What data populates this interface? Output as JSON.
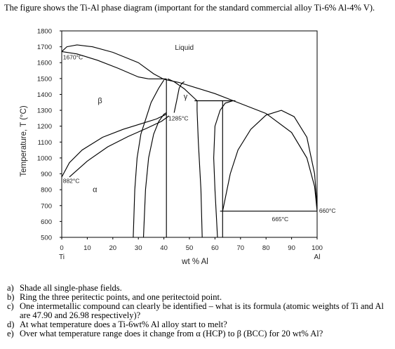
{
  "intro": "The figure shows the Ti-Al phase diagram (important for the standard commercial alloy Ti-6% Al-4% V).",
  "chart_data": {
    "type": "diagram",
    "ylabel": "Temperature, T (°C)",
    "xlabel": "wt % Al",
    "xlim": [
      0,
      100
    ],
    "ylim": [
      500,
      1800
    ],
    "x_ticks": [
      "0",
      "10",
      "20",
      "30",
      "40",
      "50",
      "60",
      "70",
      "80",
      "90",
      "100"
    ],
    "y_ticks": [
      "500",
      "600",
      "700",
      "800",
      "900",
      "1000",
      "1100",
      "1200",
      "1300",
      "1400",
      "1500",
      "1600",
      "1700",
      "1800"
    ],
    "x_end_labels": {
      "left": "Ti",
      "right": "Al"
    },
    "phase_labels": [
      {
        "text": "Liquid",
        "x": 48,
        "y": 1680
      },
      {
        "text": "β",
        "x": 15,
        "y": 1345
      },
      {
        "text": "γ",
        "x": 48.5,
        "y": 1370
      },
      {
        "text": "α",
        "x": 13,
        "y": 785
      }
    ],
    "temperature_annotations": [
      {
        "text": "1670°C",
        "x": 0.2,
        "y": 1635
      },
      {
        "text": "1285°C",
        "x": 41.5,
        "y": 1250
      },
      {
        "text": "882°C",
        "x": 0.2,
        "y": 855
      },
      {
        "text": "665°C",
        "x": 82,
        "y": 615
      },
      {
        "text": "660°C",
        "x": 100.5,
        "y": 668
      }
    ],
    "lines": [
      {
        "name": "liquidus",
        "points": [
          [
            0,
            1670
          ],
          [
            2,
            1700
          ],
          [
            6,
            1712
          ],
          [
            12,
            1700
          ],
          [
            20,
            1665
          ],
          [
            30,
            1600
          ],
          [
            36,
            1530
          ],
          [
            40,
            1495
          ],
          [
            46,
            1475
          ],
          [
            53,
            1440
          ],
          [
            60,
            1405
          ],
          [
            68,
            1355
          ]
        ]
      },
      {
        "name": "liquidus-right",
        "points": [
          [
            68,
            1355
          ],
          [
            80,
            1280
          ],
          [
            90,
            1160
          ],
          [
            96,
            1000
          ],
          [
            99,
            820
          ],
          [
            100,
            665
          ]
        ]
      },
      {
        "name": "beta-solvus-right",
        "points": [
          [
            0,
            1670
          ],
          [
            6,
            1655
          ],
          [
            14,
            1615
          ],
          [
            22,
            1565
          ],
          [
            30,
            1510
          ],
          [
            34,
            1498
          ]
        ]
      },
      {
        "name": "peritectic-1490",
        "points": [
          [
            34,
            1498
          ],
          [
            41,
            1498
          ]
        ]
      },
      {
        "name": "peritectic-1360",
        "points": [
          [
            52,
            1360
          ],
          [
            68,
            1360
          ]
        ]
      },
      {
        "name": "eutectic-665",
        "points": [
          [
            62,
            665
          ],
          [
            100,
            665
          ]
        ]
      },
      {
        "name": "beta-to-alpha",
        "points": [
          [
            0,
            880
          ],
          [
            3,
            970
          ],
          [
            8,
            1050
          ],
          [
            16,
            1130
          ],
          [
            24,
            1180
          ],
          [
            31,
            1215
          ],
          [
            37,
            1245
          ],
          [
            41,
            1275
          ]
        ]
      },
      {
        "name": "alpha-beta-lower",
        "points": [
          [
            3,
            880
          ],
          [
            10,
            980
          ],
          [
            18,
            1070
          ],
          [
            26,
            1135
          ],
          [
            33,
            1185
          ],
          [
            39,
            1230
          ],
          [
            42,
            1265
          ]
        ]
      },
      {
        "name": "alpha2-left",
        "points": [
          [
            28,
            500
          ],
          [
            28.6,
            800
          ],
          [
            29.5,
            1000
          ],
          [
            31,
            1150
          ],
          [
            33,
            1250
          ],
          [
            35,
            1350
          ],
          [
            38,
            1440
          ],
          [
            40,
            1490
          ]
        ]
      },
      {
        "name": "alpha2-right",
        "points": [
          [
            32,
            500
          ],
          [
            32.8,
            800
          ],
          [
            34,
            1000
          ],
          [
            36,
            1150
          ],
          [
            38,
            1230
          ],
          [
            40,
            1275
          ],
          [
            41,
            1285
          ]
        ]
      },
      {
        "name": "gamma-left",
        "points": [
          [
            41,
            500
          ],
          [
            41,
            1285
          ],
          [
            41,
            1498
          ]
        ]
      },
      {
        "name": "gamma-right-peritectic",
        "points": [
          [
            41.5,
            1498
          ],
          [
            44,
            1480
          ],
          [
            48,
            1435
          ],
          [
            53,
            1360
          ]
        ]
      },
      {
        "name": "gamma-right",
        "points": [
          [
            55,
            500
          ],
          [
            54.5,
            800
          ],
          [
            53.5,
            1100
          ],
          [
            53,
            1300
          ],
          [
            53,
            1360
          ]
        ]
      },
      {
        "name": "gamma-boundary-upper",
        "points": [
          [
            44,
            1285
          ],
          [
            45,
            1360
          ],
          [
            46,
            1440
          ],
          [
            47,
            1470
          ],
          [
            48,
            1480
          ]
        ]
      },
      {
        "name": "tial3-left",
        "points": [
          [
            61,
            500
          ],
          [
            60,
            800
          ],
          [
            59.5,
            1000
          ],
          [
            60,
            1200
          ],
          [
            62,
            1300
          ],
          [
            64,
            1345
          ],
          [
            67,
            1360
          ]
        ]
      },
      {
        "name": "tial3-right",
        "points": [
          [
            63,
            500
          ],
          [
            63,
            1360
          ]
        ]
      },
      {
        "name": "al-solvus",
        "points": [
          [
            63,
            665
          ],
          [
            66,
            900
          ],
          [
            69,
            1050
          ],
          [
            74,
            1180
          ],
          [
            80,
            1270
          ],
          [
            86,
            1300
          ],
          [
            91,
            1260
          ],
          [
            96,
            1130
          ],
          [
            99,
            900
          ],
          [
            100,
            700
          ]
        ]
      }
    ]
  },
  "questions": [
    {
      "letter": "a)",
      "text": "Shade all single-phase fields."
    },
    {
      "letter": "b)",
      "text": "Ring the three peritectic points, and one peritectoid point."
    },
    {
      "letter": "c)",
      "text": "One intermetallic compound can clearly be identified – what is its formula (atomic weights of Ti and Al are 47.90 and 26.98 respectively)?"
    },
    {
      "letter": "d)",
      "text": "At what temperature does a Ti-6wt% Al alloy start to melt?"
    },
    {
      "letter": "e)",
      "text": "Over what temperature range does it change from α (HCP) to β (BCC) for 20 wt% Al?"
    }
  ]
}
